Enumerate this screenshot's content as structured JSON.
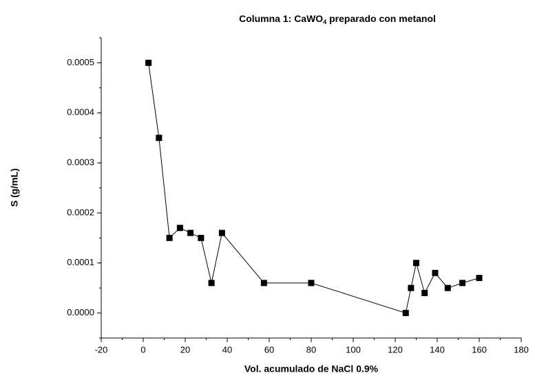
{
  "chart_data": {
    "type": "line",
    "title_parts": [
      "Columna 1:  CaWO",
      "4",
      " preparado con metanol"
    ],
    "xlabel": "Vol. acumulado de NaCl 0.9%",
    "ylabel": "S (g/mL)",
    "color": "#000000",
    "x": [
      2.5,
      7.5,
      12.5,
      17.5,
      22.5,
      27.5,
      32.5,
      37.5,
      57.5,
      80,
      125,
      127.5,
      130,
      134,
      139,
      145,
      152,
      160
    ],
    "values": [
      0.0005,
      0.00035,
      0.00015,
      0.00017,
      0.00016,
      0.00015,
      6e-05,
      0.00016,
      6e-05,
      6e-05,
      0.0,
      5e-05,
      0.0001,
      4e-05,
      8e-05,
      5e-05,
      6e-05,
      7e-05
    ],
    "xlim": [
      -20,
      180
    ],
    "xticks": [
      -20,
      0,
      20,
      40,
      60,
      80,
      100,
      120,
      140,
      160,
      180
    ],
    "ylim": [
      -5e-05,
      0.00055
    ],
    "yticks": [
      {
        "value": 0,
        "label": "0.0000"
      },
      {
        "value": 0.0001,
        "label": "0.0001"
      },
      {
        "value": 0.0002,
        "label": "0.0002"
      },
      {
        "value": 0.0003,
        "label": "0.0003"
      },
      {
        "value": 0.0004,
        "label": "0.0004"
      },
      {
        "value": 0.0005,
        "label": "0.0005"
      }
    ]
  }
}
